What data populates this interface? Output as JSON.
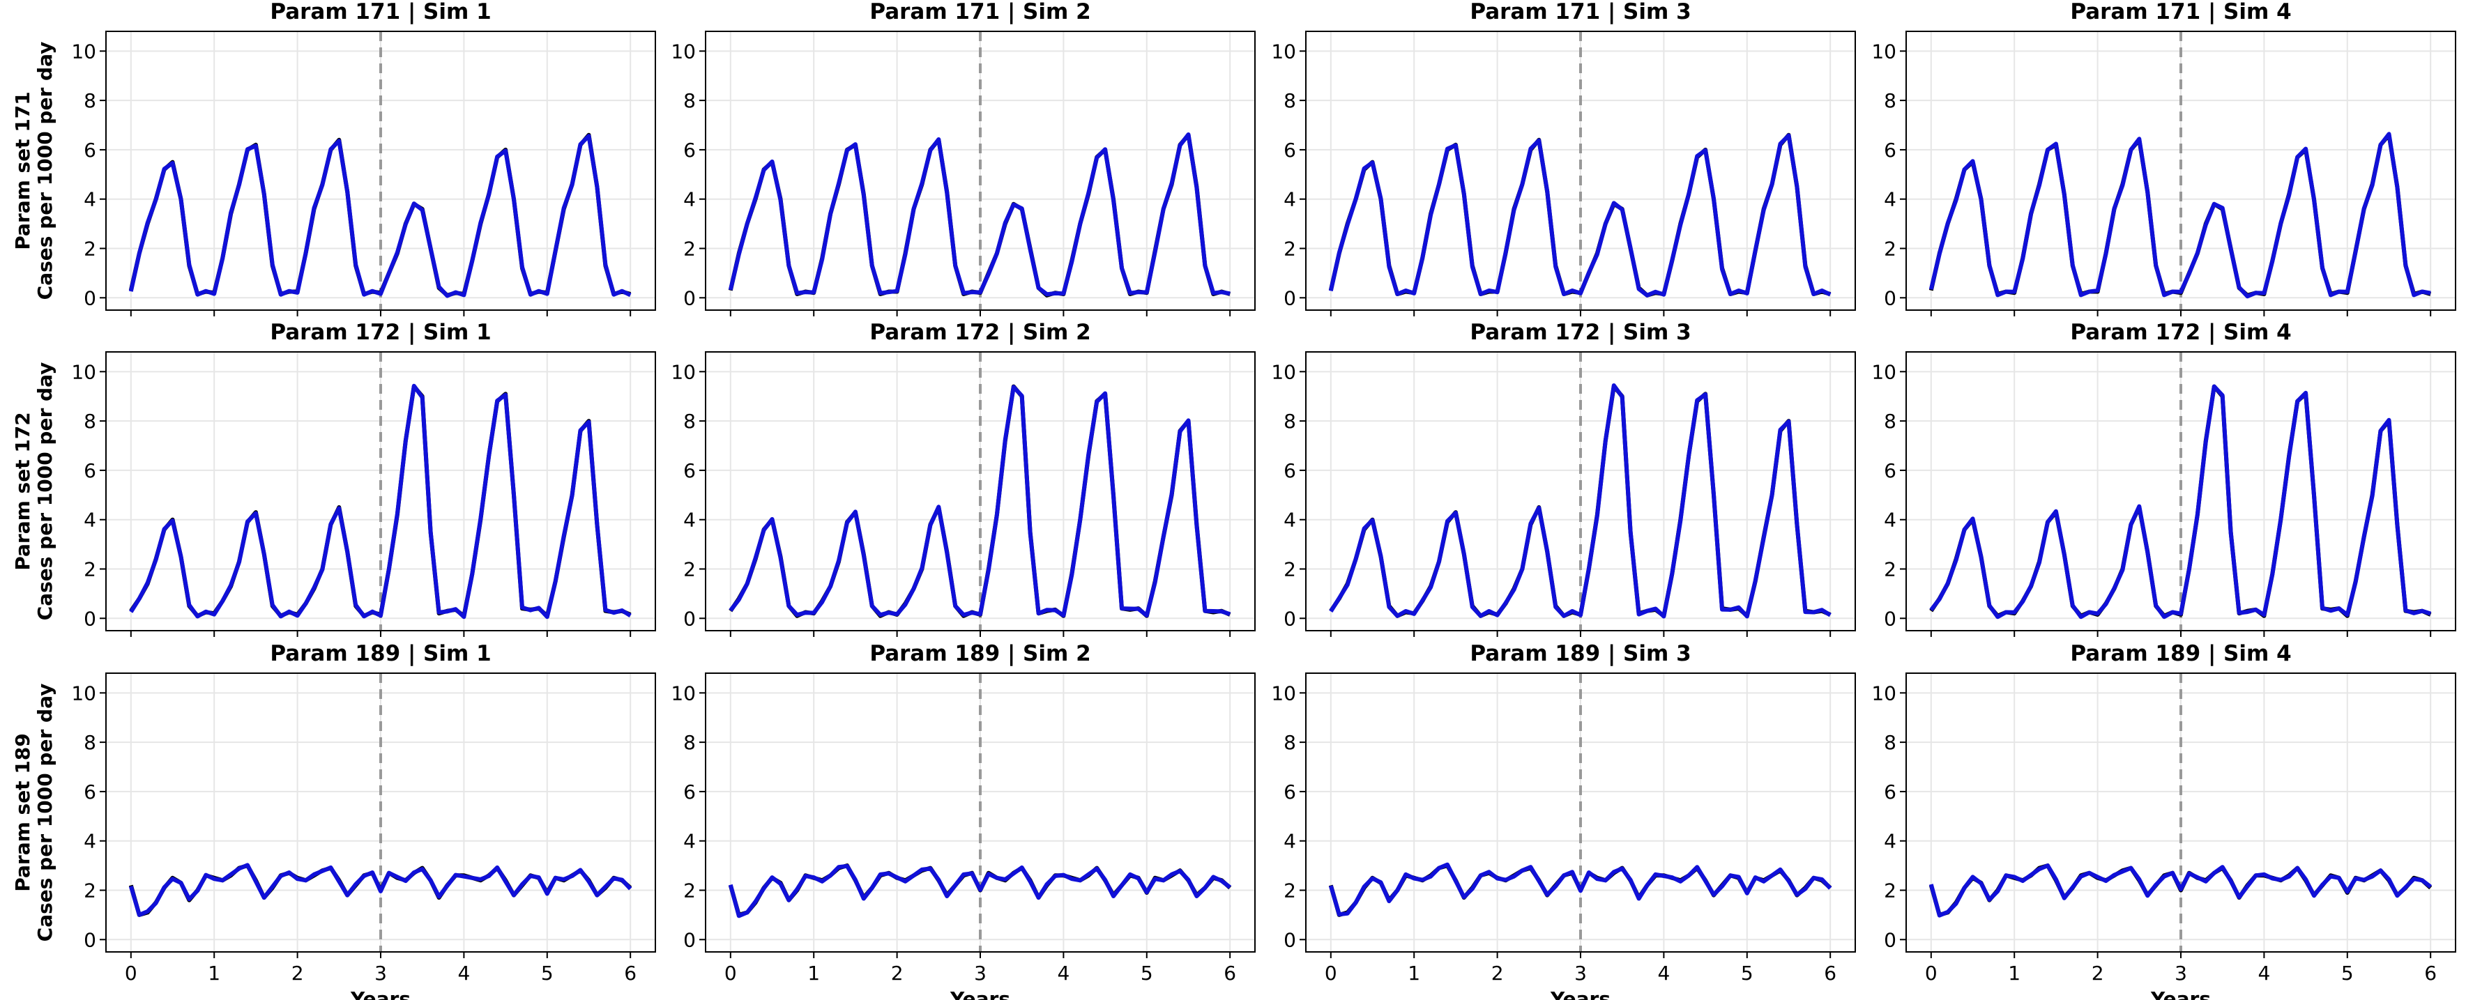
{
  "chart_data": {
    "type": "line",
    "layout": {
      "rows": 3,
      "cols": 4,
      "sharex": true,
      "sharey": true
    },
    "xlabel": "Years",
    "xlim": [
      -0.3,
      6.3
    ],
    "ylim": [
      -0.5,
      10.8
    ],
    "xticks": [
      0,
      1,
      2,
      3,
      4,
      5,
      6
    ],
    "yticks": [
      0,
      2,
      4,
      6,
      8,
      10
    ],
    "grid": true,
    "intervention_year": 3,
    "colors": {
      "series_a": "#000000",
      "series_b": "#1010d8",
      "intervention_line": "#999999"
    },
    "row_ylabels": [
      [
        "Param set 171",
        "Cases per 1000 per day"
      ],
      [
        "Param set 172",
        "Cases per 1000 per day"
      ],
      [
        "Param set 189",
        "Cases per 1000 per day"
      ]
    ],
    "panels": [
      {
        "title": "Param 171 | Sim 1",
        "row": 0,
        "col": 0
      },
      {
        "title": "Param 171 | Sim 2",
        "row": 0,
        "col": 1
      },
      {
        "title": "Param 171 | Sim 3",
        "row": 0,
        "col": 2
      },
      {
        "title": "Param 171 | Sim 4",
        "row": 0,
        "col": 3
      },
      {
        "title": "Param 172 | Sim 1",
        "row": 1,
        "col": 0
      },
      {
        "title": "Param 172 | Sim 2",
        "row": 1,
        "col": 1
      },
      {
        "title": "Param 172 | Sim 3",
        "row": 1,
        "col": 2
      },
      {
        "title": "Param 172 | Sim 4",
        "row": 1,
        "col": 3
      },
      {
        "title": "Param 189 | Sim 1",
        "row": 2,
        "col": 0
      },
      {
        "title": "Param 189 | Sim 2",
        "row": 2,
        "col": 1
      },
      {
        "title": "Param 189 | Sim 3",
        "row": 2,
        "col": 2
      },
      {
        "title": "Param 189 | Sim 4",
        "row": 2,
        "col": 3
      }
    ],
    "rows_data": [
      {
        "x": [
          0,
          0.1,
          0.2,
          0.3,
          0.4,
          0.5,
          0.6,
          0.7,
          0.8,
          0.9,
          1.0,
          1.1,
          1.2,
          1.3,
          1.4,
          1.5,
          1.6,
          1.7,
          1.8,
          1.9,
          2.0,
          2.1,
          2.2,
          2.3,
          2.4,
          2.5,
          2.6,
          2.7,
          2.8,
          2.9,
          3.0,
          3.1,
          3.2,
          3.3,
          3.4,
          3.5,
          3.6,
          3.7,
          3.8,
          3.9,
          4.0,
          4.1,
          4.2,
          4.3,
          4.4,
          4.5,
          4.6,
          4.7,
          4.8,
          4.9,
          5.0,
          5.1,
          5.2,
          5.3,
          5.4,
          5.5,
          5.6,
          5.7,
          5.8,
          5.9,
          6.0
        ],
        "y": [
          0.3,
          1.8,
          3.0,
          4.0,
          5.2,
          5.5,
          4.0,
          1.3,
          0.15,
          0.25,
          0.2,
          1.6,
          3.4,
          4.6,
          6.0,
          6.2,
          4.2,
          1.3,
          0.15,
          0.25,
          0.25,
          1.8,
          3.6,
          4.6,
          6.0,
          6.4,
          4.3,
          1.3,
          0.15,
          0.25,
          0.2,
          1.0,
          1.8,
          3.0,
          3.8,
          3.6,
          2.0,
          0.4,
          0.1,
          0.2,
          0.15,
          1.5,
          3.0,
          4.2,
          5.7,
          6.0,
          4.0,
          1.2,
          0.15,
          0.25,
          0.2,
          1.9,
          3.6,
          4.6,
          6.2,
          6.6,
          4.5,
          1.3,
          0.15,
          0.25,
          0.15
        ]
      },
      {
        "x": [
          0,
          0.1,
          0.2,
          0.3,
          0.4,
          0.5,
          0.6,
          0.7,
          0.8,
          0.9,
          1.0,
          1.1,
          1.2,
          1.3,
          1.4,
          1.5,
          1.6,
          1.7,
          1.8,
          1.9,
          2.0,
          2.1,
          2.2,
          2.3,
          2.4,
          2.5,
          2.6,
          2.7,
          2.8,
          2.9,
          3.0,
          3.1,
          3.2,
          3.3,
          3.4,
          3.5,
          3.6,
          3.7,
          3.8,
          3.9,
          4.0,
          4.1,
          4.2,
          4.3,
          4.4,
          4.5,
          4.6,
          4.7,
          4.8,
          4.9,
          5.0,
          5.1,
          5.2,
          5.3,
          5.4,
          5.5,
          5.6,
          5.7,
          5.8,
          5.9,
          6.0
        ],
        "y": [
          0.3,
          0.8,
          1.4,
          2.4,
          3.6,
          4.0,
          2.5,
          0.5,
          0.1,
          0.25,
          0.2,
          0.7,
          1.3,
          2.3,
          3.9,
          4.3,
          2.6,
          0.5,
          0.1,
          0.25,
          0.15,
          0.6,
          1.2,
          2.0,
          3.8,
          4.5,
          2.7,
          0.5,
          0.1,
          0.25,
          0.15,
          2.0,
          4.2,
          7.2,
          9.4,
          9.0,
          3.5,
          0.2,
          0.3,
          0.35,
          0.1,
          1.8,
          4.0,
          6.6,
          8.8,
          9.1,
          5.0,
          0.4,
          0.35,
          0.4,
          0.1,
          1.5,
          3.3,
          5.0,
          7.6,
          8.0,
          3.8,
          0.3,
          0.25,
          0.3,
          0.15
        ]
      },
      {
        "x": [
          0,
          0.1,
          0.2,
          0.3,
          0.4,
          0.5,
          0.6,
          0.7,
          0.8,
          0.9,
          1.0,
          1.1,
          1.2,
          1.3,
          1.4,
          1.5,
          1.6,
          1.7,
          1.8,
          1.9,
          2.0,
          2.1,
          2.2,
          2.3,
          2.4,
          2.5,
          2.6,
          2.7,
          2.8,
          2.9,
          3.0,
          3.1,
          3.2,
          3.3,
          3.4,
          3.5,
          3.6,
          3.7,
          3.8,
          3.9,
          4.0,
          4.1,
          4.2,
          4.3,
          4.4,
          4.5,
          4.6,
          4.7,
          4.8,
          4.9,
          5.0,
          5.1,
          5.2,
          5.3,
          5.4,
          5.5,
          5.6,
          5.7,
          5.8,
          5.9,
          6.0
        ],
        "y": [
          2.2,
          1.0,
          1.1,
          1.5,
          2.1,
          2.5,
          2.3,
          1.6,
          2.0,
          2.6,
          2.5,
          2.4,
          2.6,
          2.9,
          3.0,
          2.4,
          1.7,
          2.1,
          2.6,
          2.7,
          2.5,
          2.4,
          2.6,
          2.8,
          2.9,
          2.4,
          1.8,
          2.2,
          2.6,
          2.7,
          2.0,
          2.7,
          2.5,
          2.4,
          2.7,
          2.9,
          2.4,
          1.7,
          2.2,
          2.6,
          2.6,
          2.5,
          2.4,
          2.6,
          2.9,
          2.4,
          1.8,
          2.2,
          2.6,
          2.5,
          1.9,
          2.5,
          2.4,
          2.6,
          2.8,
          2.4,
          1.8,
          2.1,
          2.5,
          2.4,
          2.1
        ]
      }
    ]
  }
}
